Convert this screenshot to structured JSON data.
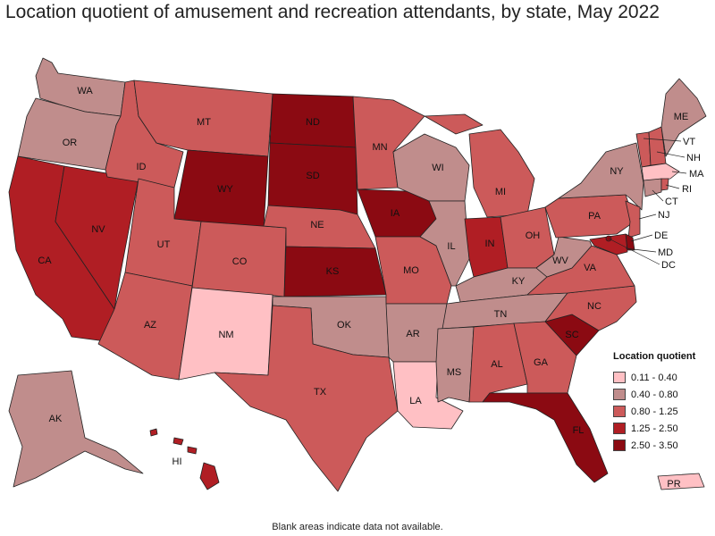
{
  "title": "Location quotient of amusement and recreation attendants, by state, May 2022",
  "footnote": "Blank areas indicate data not available.",
  "legend": {
    "title": "Location quotient",
    "items": [
      {
        "label": "0.11 - 0.40",
        "color": "#ffc0c4"
      },
      {
        "label": "0.40 - 0.80",
        "color": "#c08d8c"
      },
      {
        "label": "0.80 - 1.25",
        "color": "#cc5a5a"
      },
      {
        "label": "1.25 - 2.50",
        "color": "#b01e24"
      },
      {
        "label": "2.50 - 3.50",
        "color": "#8b0a12"
      }
    ]
  },
  "states": [
    {
      "abbr": "WA",
      "class": 1
    },
    {
      "abbr": "OR",
      "class": 1
    },
    {
      "abbr": "CA",
      "class": 3
    },
    {
      "abbr": "NV",
      "class": 3
    },
    {
      "abbr": "ID",
      "class": 2
    },
    {
      "abbr": "MT",
      "class": 2
    },
    {
      "abbr": "WY",
      "class": 4
    },
    {
      "abbr": "UT",
      "class": 2
    },
    {
      "abbr": "AZ",
      "class": 2
    },
    {
      "abbr": "CO",
      "class": 2
    },
    {
      "abbr": "NM",
      "class": 0
    },
    {
      "abbr": "ND",
      "class": 4
    },
    {
      "abbr": "SD",
      "class": 4
    },
    {
      "abbr": "NE",
      "class": 2
    },
    {
      "abbr": "KS",
      "class": 4
    },
    {
      "abbr": "OK",
      "class": 1
    },
    {
      "abbr": "TX",
      "class": 2
    },
    {
      "abbr": "MN",
      "class": 2
    },
    {
      "abbr": "IA",
      "class": 4
    },
    {
      "abbr": "MO",
      "class": 2
    },
    {
      "abbr": "AR",
      "class": 1
    },
    {
      "abbr": "LA",
      "class": 0
    },
    {
      "abbr": "WI",
      "class": 1
    },
    {
      "abbr": "IL",
      "class": 1
    },
    {
      "abbr": "MI",
      "class": 2
    },
    {
      "abbr": "IN",
      "class": 3
    },
    {
      "abbr": "OH",
      "class": 2
    },
    {
      "abbr": "KY",
      "class": 1
    },
    {
      "abbr": "TN",
      "class": 1
    },
    {
      "abbr": "MS",
      "class": 1
    },
    {
      "abbr": "AL",
      "class": 2
    },
    {
      "abbr": "GA",
      "class": 2
    },
    {
      "abbr": "FL",
      "class": 4
    },
    {
      "abbr": "SC",
      "class": 4
    },
    {
      "abbr": "NC",
      "class": 2
    },
    {
      "abbr": "VA",
      "class": 2
    },
    {
      "abbr": "WV",
      "class": 1
    },
    {
      "abbr": "PA",
      "class": 2
    },
    {
      "abbr": "NY",
      "class": 1
    },
    {
      "abbr": "ME",
      "class": 1
    },
    {
      "abbr": "AK",
      "class": 1
    },
    {
      "abbr": "HI",
      "class": 3
    },
    {
      "abbr": "PR",
      "class": 0
    },
    {
      "abbr": "VT",
      "class": 2
    },
    {
      "abbr": "NH",
      "class": 2
    },
    {
      "abbr": "MA",
      "class": 0
    },
    {
      "abbr": "RI",
      "class": 2
    },
    {
      "abbr": "CT",
      "class": 1
    },
    {
      "abbr": "NJ",
      "class": 2
    },
    {
      "abbr": "DE",
      "class": 4
    },
    {
      "abbr": "MD",
      "class": 3
    },
    {
      "abbr": "DC",
      "class": 4
    }
  ]
}
